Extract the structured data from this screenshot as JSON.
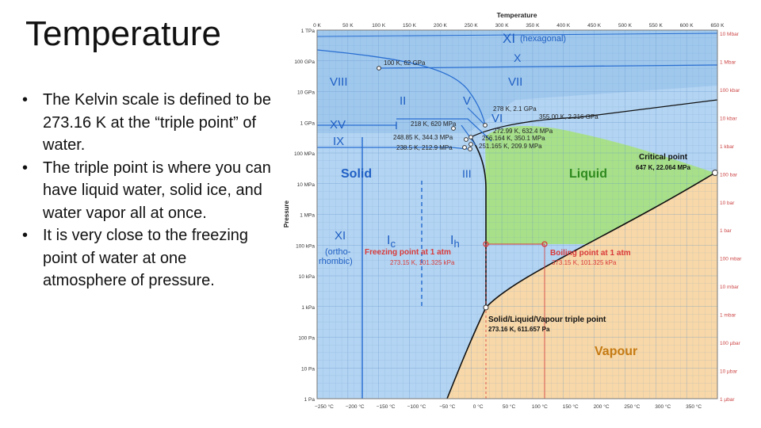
{
  "slide": {
    "title": "Temperature",
    "bullets": [
      "The Kelvin scale is defined to be 273.16 K at the “triple point” of water.",
      "The triple point is where you can have liquid water, solid ice, and water vapor all at once.",
      "It is very close to the freezing point of water at one atmosphere of pressure."
    ]
  },
  "diagram": {
    "top_axis_title": "Temperature",
    "left_axis_title": "Pressure",
    "top_ticks": [
      "0 K",
      "50 K",
      "100 K",
      "150 K",
      "200 K",
      "250 K",
      "300 K",
      "350 K",
      "400 K",
      "450 K",
      "500 K",
      "550 K",
      "600 K",
      "650 K"
    ],
    "bottom_ticks": [
      "−250 °C",
      "−200 °C",
      "−150 °C",
      "−100 °C",
      "−50 °C",
      "0 °C",
      "50 °C",
      "100 °C",
      "150 °C",
      "200 °C",
      "250 °C",
      "300 °C",
      "350 °C"
    ],
    "left_ticks": [
      "1 TPa",
      "100 GPa",
      "10 GPa",
      "1 GPa",
      "100 MPa",
      "10 MPa",
      "1 MPa",
      "100 kPa",
      "10 kPa",
      "1 kPa",
      "100 Pa",
      "10 Pa",
      "1 Pa"
    ],
    "right_ticks": [
      "10 Mbar",
      "1 Mbar",
      "100 kbar",
      "10 kbar",
      "1 kbar",
      "100 bar",
      "10 bar",
      "1 bar",
      "100 mbar",
      "10 mbar",
      "1 mbar",
      "100 µbar",
      "10 µbar",
      "1 µbar"
    ],
    "phases": {
      "xi_hex": "XI",
      "xi_hex_note": "(hexagonal)",
      "x": "X",
      "viii": "VIII",
      "vii": "VII",
      "ii": "II",
      "v": "V",
      "vi": "VI",
      "xv": "XV",
      "ix": "IX",
      "i_small": "I",
      "iii": "III",
      "solid": "Solid",
      "liquid": "Liquid",
      "vapour": "Vapour",
      "xi_ortho": "XI",
      "xi_ortho_note_1": "(ortho-",
      "xi_ortho_note_2": "rhombic)",
      "ic_main": "I",
      "ic_sub": "c",
      "ih_main": "I",
      "ih_sub": "h"
    },
    "points": {
      "p1": "100 K, 62 GPa",
      "p2": "278 K, 2.1 GPa",
      "p3": "355.00 K, 2.216 GPa",
      "p4": "218 K, 620 MPa",
      "p5": "272.99 K, 632.4 MPa",
      "p6": "248.85 K, 344.3 MPa",
      "p7": "256.164 K, 350.1 MPa",
      "p8": "238.5 K, 212.9 MPa",
      "p9": "251.165 K, 209.9 MPa"
    },
    "critical_point": {
      "label": "Critical point",
      "value": "647 K, 22.064 MPa"
    },
    "freezing_point": {
      "label": "Freezing point at 1 atm",
      "value": "273.15 K, 101.325 kPa"
    },
    "boiling_point": {
      "label": "Boiling point at 1 atm",
      "value": "373.15 K, 101.325 kPa"
    },
    "triple_point": {
      "label": "Solid/Liquid/Vapour triple point",
      "value": "273.16 K, 611.657 Pa"
    },
    "colors": {
      "solid": "#b3d4f2",
      "solid_deep": "#8fbde9",
      "liquid": "#a8e08a",
      "vapour": "#f8d8a8",
      "boundary": "#111111",
      "phase_line": "#2a6fd1",
      "marker": "#d93a3a"
    }
  }
}
